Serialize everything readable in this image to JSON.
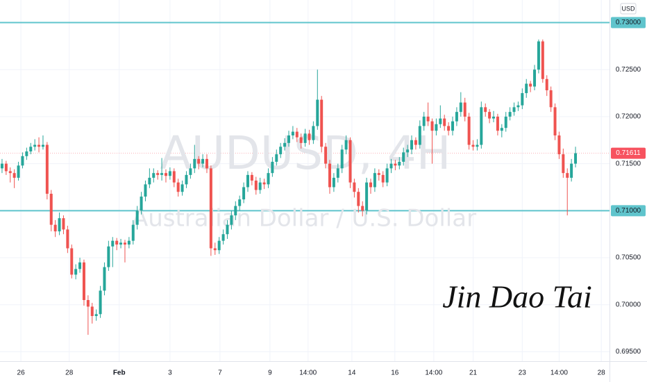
{
  "chart_data": {
    "type": "candlestick",
    "title": "AUDUSD, 4H",
    "subtitle": "Australian Dollar / U.S. Dollar",
    "annotation": "Jin Dao Tai",
    "currency": "USD",
    "up_color": "#26a69a",
    "down_color": "#ef5350",
    "grid": true,
    "xlim": [
      -0.5,
      148.3
    ],
    "ylim": [
      0.694,
      0.7324
    ],
    "yticks": [
      {
        "value": 0.695,
        "label": "0.69500"
      },
      {
        "value": 0.7,
        "label": "0.70000"
      },
      {
        "value": 0.705,
        "label": "0.70500"
      },
      {
        "value": 0.715,
        "label": "0.71500"
      },
      {
        "value": 0.72,
        "label": "0.72000"
      },
      {
        "value": 0.725,
        "label": "0.72500"
      }
    ],
    "xticks": [
      {
        "value": 4.6,
        "label": "26"
      },
      {
        "value": 16.4,
        "label": "28"
      },
      {
        "value": 28.6,
        "label": "Feb"
      },
      {
        "value": 41,
        "label": "3"
      },
      {
        "value": 53.2,
        "label": "7"
      },
      {
        "value": 65.4,
        "label": "9"
      },
      {
        "value": 74.7,
        "label": "14:00"
      },
      {
        "value": 85.4,
        "label": "14"
      },
      {
        "value": 95.9,
        "label": "16"
      },
      {
        "value": 105.4,
        "label": "14:00"
      },
      {
        "value": 115,
        "label": "21"
      },
      {
        "value": 127,
        "label": "23"
      },
      {
        "value": 136,
        "label": "14:00"
      },
      {
        "value": 146.3,
        "label": "28"
      }
    ],
    "hlines": [
      {
        "value": 0.73,
        "label": "0.73000"
      },
      {
        "value": 0.71,
        "label": "0.71000"
      }
    ],
    "hline_color": "#5fc4cc",
    "last_price": 0.71611,
    "last_price_color": "#f7525f",
    "candles": [
      [
        0.7145,
        0.7155,
        0.714,
        0.715
      ],
      [
        0.715,
        0.7153,
        0.7138,
        0.7142
      ],
      [
        0.7142,
        0.7146,
        0.713,
        0.714
      ],
      [
        0.714,
        0.7144,
        0.7124,
        0.7135
      ],
      [
        0.7135,
        0.7152,
        0.7132,
        0.7148
      ],
      [
        0.7148,
        0.7162,
        0.7145,
        0.7158
      ],
      [
        0.7158,
        0.7167,
        0.7154,
        0.7163
      ],
      [
        0.7163,
        0.7172,
        0.716,
        0.7168
      ],
      [
        0.7168,
        0.7176,
        0.7164,
        0.717
      ],
      [
        0.717,
        0.7178,
        0.7162,
        0.7168
      ],
      [
        0.7168,
        0.718,
        0.7165,
        0.717
      ],
      [
        0.717,
        0.7173,
        0.7112,
        0.7118
      ],
      [
        0.7118,
        0.7122,
        0.7078,
        0.7085
      ],
      [
        0.7085,
        0.709,
        0.7072,
        0.7078
      ],
      [
        0.7078,
        0.7098,
        0.7074,
        0.7092
      ],
      [
        0.7092,
        0.7095,
        0.7075,
        0.708
      ],
      [
        0.708,
        0.7084,
        0.7055,
        0.706
      ],
      [
        0.706,
        0.7064,
        0.7028,
        0.7032
      ],
      [
        0.7032,
        0.7043,
        0.7027,
        0.7038
      ],
      [
        0.7038,
        0.705,
        0.7034,
        0.7045
      ],
      [
        0.7045,
        0.7048,
        0.6999,
        0.7005
      ],
      [
        0.7005,
        0.701,
        0.6968,
        0.6998
      ],
      [
        0.6998,
        0.7002,
        0.698,
        0.6988
      ],
      [
        0.6988,
        0.6995,
        0.6983,
        0.699
      ],
      [
        0.699,
        0.702,
        0.6986,
        0.7015
      ],
      [
        0.7015,
        0.7045,
        0.701,
        0.704
      ],
      [
        0.704,
        0.7068,
        0.7036,
        0.7062
      ],
      [
        0.7062,
        0.7072,
        0.704,
        0.7068
      ],
      [
        0.7068,
        0.7071,
        0.7058,
        0.7064
      ],
      [
        0.7064,
        0.707,
        0.706,
        0.7066
      ],
      [
        0.7066,
        0.7069,
        0.7045,
        0.7064
      ],
      [
        0.7064,
        0.7072,
        0.706,
        0.7068
      ],
      [
        0.7068,
        0.709,
        0.7064,
        0.7085
      ],
      [
        0.7085,
        0.7105,
        0.708,
        0.71
      ],
      [
        0.71,
        0.712,
        0.7096,
        0.7115
      ],
      [
        0.7115,
        0.7132,
        0.711,
        0.7128
      ],
      [
        0.7128,
        0.7145,
        0.7124,
        0.7135
      ],
      [
        0.7135,
        0.7145,
        0.713,
        0.714
      ],
      [
        0.714,
        0.7143,
        0.7133,
        0.7138
      ],
      [
        0.7138,
        0.7156,
        0.7132,
        0.714
      ],
      [
        0.714,
        0.7144,
        0.713,
        0.7137
      ],
      [
        0.7137,
        0.7146,
        0.7133,
        0.7142
      ],
      [
        0.7142,
        0.7145,
        0.7125,
        0.713
      ],
      [
        0.713,
        0.7134,
        0.7115,
        0.712
      ],
      [
        0.712,
        0.7132,
        0.7116,
        0.7128
      ],
      [
        0.7128,
        0.7142,
        0.7124,
        0.7138
      ],
      [
        0.7138,
        0.715,
        0.7134,
        0.7145
      ],
      [
        0.7145,
        0.717,
        0.714,
        0.7155
      ],
      [
        0.7155,
        0.7158,
        0.7144,
        0.715
      ],
      [
        0.715,
        0.716,
        0.7146,
        0.7155
      ],
      [
        0.7155,
        0.716,
        0.714,
        0.7145
      ],
      [
        0.7145,
        0.7148,
        0.7052,
        0.706
      ],
      [
        0.706,
        0.7066,
        0.7053,
        0.7058
      ],
      [
        0.7058,
        0.7072,
        0.7054,
        0.7068
      ],
      [
        0.7068,
        0.708,
        0.7064,
        0.7075
      ],
      [
        0.7075,
        0.709,
        0.707,
        0.7085
      ],
      [
        0.7085,
        0.71,
        0.708,
        0.7095
      ],
      [
        0.7095,
        0.711,
        0.709,
        0.7105
      ],
      [
        0.7105,
        0.7116,
        0.71,
        0.7112
      ],
      [
        0.7112,
        0.713,
        0.7108,
        0.7125
      ],
      [
        0.7125,
        0.7142,
        0.712,
        0.7138
      ],
      [
        0.7138,
        0.7141,
        0.7127,
        0.7132
      ],
      [
        0.7132,
        0.7136,
        0.7117,
        0.7122
      ],
      [
        0.7122,
        0.7135,
        0.7118,
        0.713
      ],
      [
        0.713,
        0.7134,
        0.7123,
        0.7128
      ],
      [
        0.7128,
        0.7145,
        0.7124,
        0.714
      ],
      [
        0.714,
        0.7157,
        0.7136,
        0.7152
      ],
      [
        0.7152,
        0.7165,
        0.7148,
        0.716
      ],
      [
        0.716,
        0.7172,
        0.7156,
        0.7168
      ],
      [
        0.7168,
        0.7177,
        0.7164,
        0.7172
      ],
      [
        0.7172,
        0.7185,
        0.7168,
        0.718
      ],
      [
        0.718,
        0.719,
        0.7176,
        0.7184
      ],
      [
        0.7184,
        0.7188,
        0.7173,
        0.7178
      ],
      [
        0.7178,
        0.7182,
        0.7166,
        0.7172
      ],
      [
        0.7172,
        0.7187,
        0.7168,
        0.7182
      ],
      [
        0.7182,
        0.7186,
        0.717,
        0.7175
      ],
      [
        0.7175,
        0.7195,
        0.7171,
        0.719
      ],
      [
        0.719,
        0.725,
        0.7186,
        0.7218
      ],
      [
        0.7218,
        0.7222,
        0.7162,
        0.7168
      ],
      [
        0.7168,
        0.7172,
        0.7145,
        0.715
      ],
      [
        0.715,
        0.7154,
        0.7118,
        0.7125
      ],
      [
        0.7125,
        0.714,
        0.712,
        0.7135
      ],
      [
        0.7135,
        0.715,
        0.713,
        0.7145
      ],
      [
        0.7145,
        0.717,
        0.714,
        0.7165
      ],
      [
        0.7165,
        0.718,
        0.716,
        0.7175
      ],
      [
        0.7175,
        0.7178,
        0.7124,
        0.713
      ],
      [
        0.713,
        0.7134,
        0.7114,
        0.712
      ],
      [
        0.712,
        0.7124,
        0.7098,
        0.7105
      ],
      [
        0.7105,
        0.711,
        0.7094,
        0.71
      ],
      [
        0.71,
        0.7135,
        0.7096,
        0.713
      ],
      [
        0.713,
        0.7134,
        0.7118,
        0.7125
      ],
      [
        0.7125,
        0.7145,
        0.712,
        0.714
      ],
      [
        0.714,
        0.7144,
        0.7132,
        0.7138
      ],
      [
        0.7138,
        0.7142,
        0.7125,
        0.713
      ],
      [
        0.713,
        0.715,
        0.7126,
        0.7145
      ],
      [
        0.7145,
        0.7155,
        0.714,
        0.715
      ],
      [
        0.715,
        0.7154,
        0.7143,
        0.7148
      ],
      [
        0.7148,
        0.7157,
        0.7144,
        0.7152
      ],
      [
        0.7152,
        0.7167,
        0.7148,
        0.7162
      ],
      [
        0.7162,
        0.717,
        0.7157,
        0.7165
      ],
      [
        0.7165,
        0.718,
        0.716,
        0.7175
      ],
      [
        0.7175,
        0.7178,
        0.7165,
        0.717
      ],
      [
        0.717,
        0.7196,
        0.7166,
        0.719
      ],
      [
        0.719,
        0.7205,
        0.7185,
        0.72
      ],
      [
        0.72,
        0.7215,
        0.719,
        0.7195
      ],
      [
        0.7195,
        0.7198,
        0.715,
        0.7185
      ],
      [
        0.7185,
        0.7198,
        0.718,
        0.7192
      ],
      [
        0.7192,
        0.7212,
        0.7188,
        0.7198
      ],
      [
        0.7198,
        0.7202,
        0.7185,
        0.719
      ],
      [
        0.719,
        0.7194,
        0.718,
        0.7185
      ],
      [
        0.7185,
        0.72,
        0.718,
        0.7195
      ],
      [
        0.7195,
        0.721,
        0.719,
        0.7205
      ],
      [
        0.7205,
        0.7226,
        0.72,
        0.7215
      ],
      [
        0.7215,
        0.722,
        0.7195,
        0.72
      ],
      [
        0.72,
        0.7204,
        0.7165,
        0.717
      ],
      [
        0.717,
        0.7175,
        0.7164,
        0.7168
      ],
      [
        0.7168,
        0.7176,
        0.7164,
        0.717
      ],
      [
        0.717,
        0.7216,
        0.7166,
        0.721
      ],
      [
        0.721,
        0.7214,
        0.72,
        0.7205
      ],
      [
        0.7205,
        0.7208,
        0.7193,
        0.7198
      ],
      [
        0.7198,
        0.7206,
        0.7194,
        0.72
      ],
      [
        0.72,
        0.7203,
        0.718,
        0.7185
      ],
      [
        0.7185,
        0.7192,
        0.7178,
        0.7188
      ],
      [
        0.7188,
        0.7205,
        0.7184,
        0.72
      ],
      [
        0.72,
        0.721,
        0.7196,
        0.7205
      ],
      [
        0.7205,
        0.7215,
        0.7201,
        0.721
      ],
      [
        0.721,
        0.7216,
        0.7206,
        0.7212
      ],
      [
        0.7212,
        0.723,
        0.7208,
        0.7225
      ],
      [
        0.7225,
        0.724,
        0.722,
        0.7235
      ],
      [
        0.7235,
        0.7238,
        0.7226,
        0.7232
      ],
      [
        0.7232,
        0.7255,
        0.7228,
        0.725
      ],
      [
        0.725,
        0.7282,
        0.7246,
        0.728
      ],
      [
        0.728,
        0.7282,
        0.7236,
        0.724
      ],
      [
        0.724,
        0.7244,
        0.7222,
        0.7228
      ],
      [
        0.7228,
        0.7232,
        0.7205,
        0.721
      ],
      [
        0.721,
        0.7214,
        0.7175,
        0.718
      ],
      [
        0.718,
        0.7184,
        0.7155,
        0.716
      ],
      [
        0.716,
        0.7166,
        0.7135,
        0.714
      ],
      [
        0.714,
        0.7145,
        0.7095,
        0.7135
      ],
      [
        0.7135,
        0.7155,
        0.7131,
        0.715
      ],
      [
        0.715,
        0.7168,
        0.7146,
        0.71611
      ]
    ]
  }
}
